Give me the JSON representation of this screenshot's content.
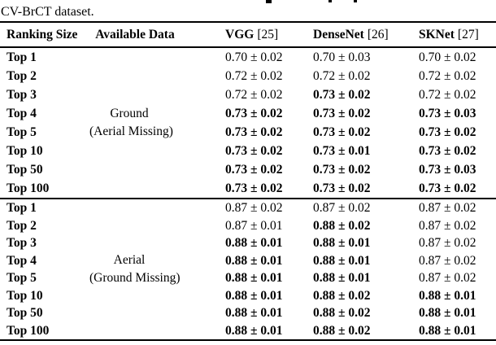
{
  "caption": {
    "text": "CV-BrCT dataset."
  },
  "table": {
    "header": {
      "ranking": "Ranking Size",
      "available": "Available Data",
      "models": [
        {
          "name": "VGG",
          "ref": "[25]"
        },
        {
          "name": "DenseNet",
          "ref": "[26]"
        },
        {
          "name": "SKNet",
          "ref": "[27]"
        }
      ]
    },
    "blocks": [
      {
        "available_label": [
          "Ground",
          "(Aerial Missing)"
        ],
        "rows": [
          {
            "ranking": "Top 1",
            "values": [
              "0.70 ± 0.02",
              "0.70 ± 0.03",
              "0.70 ± 0.02"
            ],
            "bold": [
              false,
              false,
              false
            ]
          },
          {
            "ranking": "Top 2",
            "values": [
              "0.72 ± 0.02",
              "0.72 ± 0.02",
              "0.72 ± 0.02"
            ],
            "bold": [
              false,
              false,
              false
            ]
          },
          {
            "ranking": "Top 3",
            "values": [
              "0.72 ± 0.02",
              "0.73 ± 0.02",
              "0.72 ± 0.02"
            ],
            "bold": [
              false,
              true,
              false
            ]
          },
          {
            "ranking": "Top 4",
            "values": [
              "0.73 ± 0.02",
              "0.73 ± 0.02",
              "0.73 ± 0.03"
            ],
            "bold": [
              true,
              true,
              true
            ]
          },
          {
            "ranking": "Top 5",
            "values": [
              "0.73 ± 0.02",
              "0.73 ± 0.02",
              "0.73 ± 0.02"
            ],
            "bold": [
              true,
              true,
              true
            ]
          },
          {
            "ranking": "Top 10",
            "values": [
              "0.73 ± 0.02",
              "0.73 ± 0.01",
              "0.73 ± 0.02"
            ],
            "bold": [
              true,
              true,
              true
            ]
          },
          {
            "ranking": "Top 50",
            "values": [
              "0.73 ± 0.02",
              "0.73 ± 0.02",
              "0.73 ± 0.03"
            ],
            "bold": [
              true,
              true,
              true
            ]
          },
          {
            "ranking": "Top 100",
            "values": [
              "0.73 ± 0.02",
              "0.73 ± 0.02",
              "0.73 ± 0.02"
            ],
            "bold": [
              true,
              true,
              true
            ]
          }
        ]
      },
      {
        "available_label": [
          "Aerial",
          "(Ground Missing)"
        ],
        "rows": [
          {
            "ranking": "Top 1",
            "values": [
              "0.87 ± 0.02",
              "0.87 ± 0.02",
              "0.87 ± 0.02"
            ],
            "bold": [
              false,
              false,
              false
            ]
          },
          {
            "ranking": "Top 2",
            "values": [
              "0.87 ± 0.01",
              "0.88 ± 0.02",
              "0.87 ± 0.02"
            ],
            "bold": [
              false,
              true,
              false
            ]
          },
          {
            "ranking": "Top 3",
            "values": [
              "0.88 ± 0.01",
              "0.88 ± 0.01",
              "0.87 ± 0.02"
            ],
            "bold": [
              true,
              true,
              false
            ]
          },
          {
            "ranking": "Top 4",
            "values": [
              "0.88 ± 0.01",
              "0.88 ± 0.01",
              "0.87 ± 0.02"
            ],
            "bold": [
              true,
              true,
              false
            ]
          },
          {
            "ranking": "Top 5",
            "values": [
              "0.88 ± 0.01",
              "0.88 ± 0.01",
              "0.87 ± 0.02"
            ],
            "bold": [
              true,
              true,
              false
            ]
          },
          {
            "ranking": "Top 10",
            "values": [
              "0.88 ± 0.01",
              "0.88 ± 0.02",
              "0.88 ± 0.01"
            ],
            "bold": [
              true,
              true,
              true
            ]
          },
          {
            "ranking": "Top 50",
            "values": [
              "0.88 ± 0.01",
              "0.88 ± 0.02",
              "0.88 ± 0.01"
            ],
            "bold": [
              true,
              true,
              true
            ]
          },
          {
            "ranking": "Top 100",
            "values": [
              "0.88 ± 0.01",
              "0.88 ± 0.02",
              "0.88 ± 0.01"
            ],
            "bold": [
              true,
              true,
              true
            ]
          }
        ]
      }
    ]
  },
  "colors": {
    "text": "#000000",
    "background": "#ffffff",
    "rule": "#000000"
  }
}
